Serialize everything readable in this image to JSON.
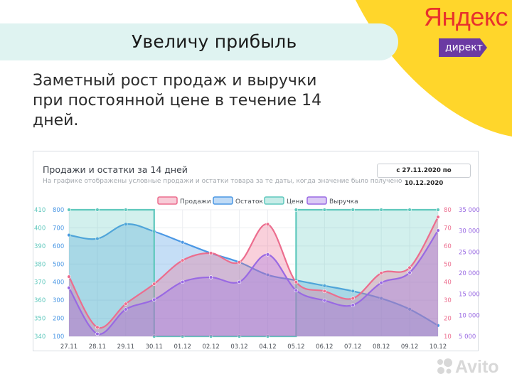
{
  "header": {
    "title": "Увеличу прибыль"
  },
  "brand": {
    "name": "Яндекс",
    "badge": "директ"
  },
  "headline": "Заметный рост продаж и выручки при постоянной цене в течение 14 дней.",
  "watermark": "Avito",
  "colors": {
    "sales": "#ec6d8e",
    "stock": "#4a97e4",
    "price": "#5fc8bd",
    "revenue": "#9969e3",
    "yellow": "#ffd62b",
    "badge": "#6b3aa3"
  },
  "chart_data": {
    "type": "line",
    "title": "Продажи и остатки за 14 дней",
    "subtitle": "На графике отображены условные продажи и остатки товара за те даты, когда значение было получено",
    "date_range": "с 27.11.2020 по 10.12.2020",
    "legend_position": "top",
    "grid": true,
    "x": [
      "27.11",
      "28.11",
      "29.11",
      "30.11",
      "01.12",
      "02.12",
      "03.12",
      "04.12",
      "05.12",
      "06.12",
      "07.12",
      "08.12",
      "09.12",
      "10.12"
    ],
    "axes": {
      "price": {
        "ticks": [
          340,
          350,
          360,
          370,
          380,
          390,
          400,
          410
        ],
        "range": [
          340,
          410
        ]
      },
      "stock": {
        "ticks": [
          100,
          200,
          300,
          400,
          500,
          600,
          700,
          800
        ],
        "range": [
          100,
          800
        ]
      },
      "sales": {
        "ticks": [
          10,
          20,
          30,
          40,
          50,
          60,
          70,
          80
        ],
        "range": [
          10,
          80
        ]
      },
      "revenue": {
        "ticks": [
          "5 000",
          "10 000",
          "15 000",
          "20 000",
          "25 000",
          "30 000",
          "35 000"
        ],
        "range": [
          5000,
          35000
        ]
      }
    },
    "series": [
      {
        "name": "Продажи",
        "axis": "sales",
        "values": [
          43,
          15,
          28,
          39,
          52,
          56,
          51,
          72,
          40,
          35,
          31,
          45,
          48,
          76
        ]
      },
      {
        "name": "Остаток",
        "axis": "stock",
        "values": [
          660,
          640,
          720,
          680,
          620,
          560,
          510,
          440,
          410,
          380,
          350,
          310,
          250,
          160
        ]
      },
      {
        "name": "Цена",
        "axis": "price",
        "values": [
          410,
          410,
          410,
          340,
          340,
          340,
          340,
          340,
          410,
          410,
          410,
          410,
          410,
          410
        ]
      },
      {
        "name": "Выручка",
        "axis": "revenue",
        "values": [
          16500,
          5600,
          11400,
          13700,
          17900,
          19000,
          17900,
          24400,
          15900,
          13500,
          12400,
          17700,
          20100,
          30100
        ]
      }
    ]
  }
}
